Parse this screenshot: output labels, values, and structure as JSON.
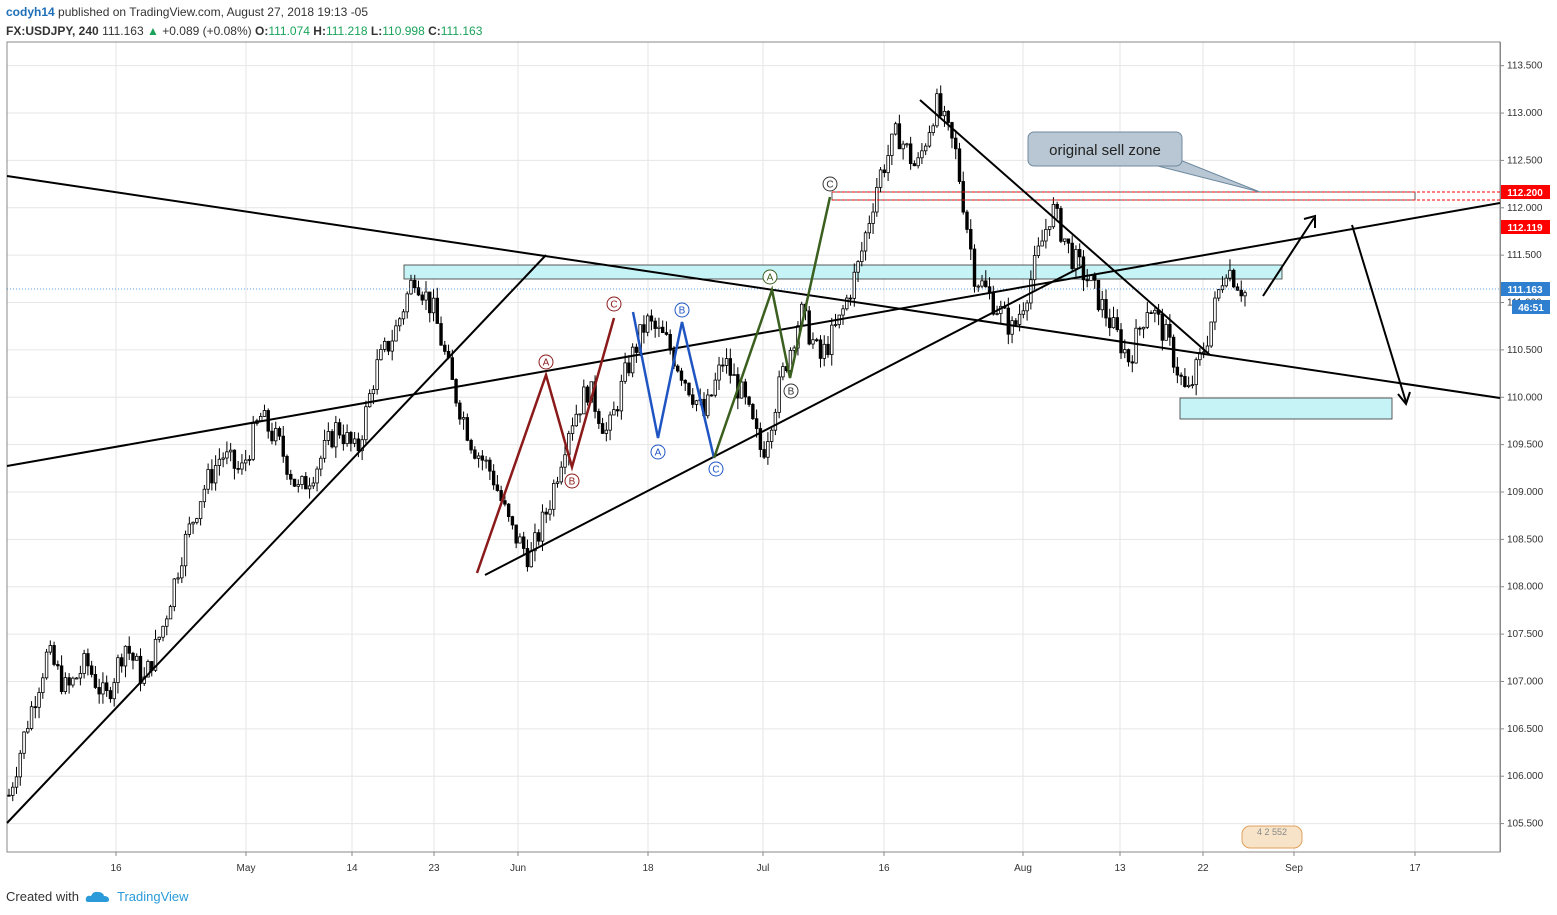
{
  "header": {
    "user": "codyh14",
    "published_text": "published on TradingView.com, August 27, 2018 19:13 -05",
    "symbol": "FX:USDJPY, 240",
    "last": "111.163",
    "change": "+0.089 (+0.08%)",
    "o_label": "O:",
    "o": "111.074",
    "h_label": "H:",
    "h": "111.218",
    "l_label": "L:",
    "l": "110.998",
    "c_label": "C:",
    "c": "111.163"
  },
  "footer": {
    "created_with": "Created with",
    "brand": "TradingView"
  },
  "colors": {
    "up_green": "#19a35a",
    "tv_blue": "#2a9bd8",
    "red_level": "#ff0000",
    "price_blue": "#2f7fd1",
    "zone_fill": "#c6f3f6",
    "wave_red": "#8b1a1a",
    "wave_blue": "#1f55c2",
    "wave_green": "#3b5f1e"
  },
  "annotation": {
    "sell_zone": "original sell zone"
  },
  "price_tags": {
    "red_high": "112.200",
    "red_low": "112.119",
    "current": "111.163",
    "countdown": "46:51"
  },
  "watermark_text": "4 2 552",
  "chart_data": {
    "type": "candlestick",
    "ylim": [
      105.2,
      113.75
    ],
    "y_ticks": [
      "113.500",
      "113.000",
      "112.500",
      "112.000",
      "111.500",
      "111.000",
      "110.500",
      "110.000",
      "109.500",
      "109.000",
      "108.500",
      "108.000",
      "107.500",
      "107.000",
      "106.500",
      "106.000",
      "105.500"
    ],
    "x_ticks": [
      "16",
      "May",
      "14",
      "23",
      "Jun",
      "18",
      "Jul",
      "16",
      "Aug",
      "13",
      "22",
      "Sep",
      "17"
    ],
    "approx_closes": [
      105.8,
      106.6,
      107.3,
      106.9,
      107.2,
      106.8,
      107.4,
      107.0,
      107.6,
      108.4,
      109.0,
      109.4,
      109.2,
      109.8,
      109.5,
      109.0,
      109.3,
      109.7,
      109.4,
      110.3,
      110.7,
      111.3,
      110.9,
      110.1,
      109.5,
      109.2,
      108.6,
      108.3,
      108.9,
      109.7,
      110.1,
      109.6,
      110.3,
      110.8,
      110.6,
      110.2,
      109.8,
      110.4,
      110.0,
      109.4,
      110.2,
      110.9,
      110.4,
      110.8,
      111.4,
      112.3,
      112.8,
      112.4,
      113.1,
      112.6,
      111.3,
      111.0,
      110.7,
      111.3,
      112.0,
      111.5,
      111.2,
      110.8,
      110.4,
      111.0,
      110.6,
      110.0,
      110.6,
      111.4,
      111.1
    ]
  }
}
